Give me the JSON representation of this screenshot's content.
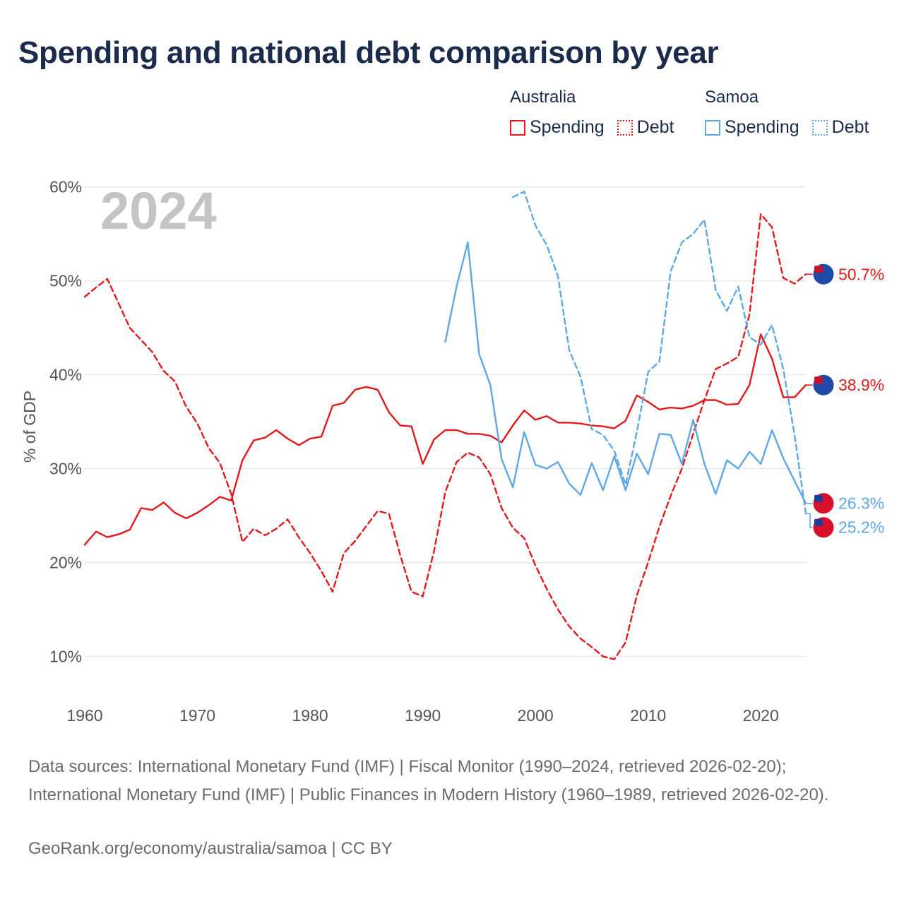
{
  "title": "Spending and national debt comparison by year",
  "legend": {
    "groups": [
      {
        "country": "Australia",
        "spending": "Spending",
        "debt": "Debt"
      },
      {
        "country": "Samoa",
        "spending": "Spending",
        "debt": "Debt"
      }
    ]
  },
  "footer": {
    "sources": "Data sources: International Monetary Fund (IMF) | Fiscal Monitor (1990–2024, retrieved 2026-02-20); International Monetary Fund (IMF) | Public Finances in Modern History (1960–1989, retrieved 2026-02-20).",
    "link": "GeoRank.org/economy/australia/samoa | CC BY"
  },
  "colors": {
    "australia": "#e31a1c",
    "samoa": "#5ea8e6",
    "grid": "#e6e6e6"
  },
  "chart_data": {
    "type": "line",
    "title": "Spending and national debt comparison by year",
    "year_label": "2024",
    "ylabel": "% of GDP",
    "xlim": [
      1960,
      2024
    ],
    "ylim": [
      5,
      62
    ],
    "xticks": [
      1960,
      1970,
      1980,
      1990,
      2000,
      2010,
      2020
    ],
    "yticks": [
      10,
      20,
      30,
      40,
      50,
      60
    ],
    "ytick_labels": [
      "10%",
      "20%",
      "30%",
      "40%",
      "50%",
      "60%"
    ],
    "grid": true,
    "series": [
      {
        "name": "Australia Spending",
        "country": "Australia",
        "style": "solid",
        "color": "#e31a1c",
        "end_label": "38.9%",
        "end_value": 38.9,
        "x": [
          1960,
          1961,
          1962,
          1963,
          1964,
          1965,
          1966,
          1967,
          1968,
          1969,
          1970,
          1971,
          1972,
          1973,
          1974,
          1975,
          1976,
          1977,
          1978,
          1979,
          1980,
          1981,
          1982,
          1983,
          1984,
          1985,
          1986,
          1987,
          1988,
          1989,
          1990,
          1991,
          1992,
          1993,
          1994,
          1995,
          1996,
          1997,
          1998,
          1999,
          2000,
          2001,
          2002,
          2003,
          2004,
          2005,
          2006,
          2007,
          2008,
          2009,
          2010,
          2011,
          2012,
          2013,
          2014,
          2015,
          2016,
          2017,
          2018,
          2019,
          2020,
          2021,
          2022,
          2023,
          2024
        ],
        "y": [
          21.9,
          23.3,
          22.7,
          23.0,
          23.5,
          25.8,
          25.6,
          26.4,
          25.3,
          24.7,
          25.3,
          26.1,
          27.0,
          26.6,
          30.9,
          33.0,
          33.3,
          34.1,
          33.2,
          32.5,
          33.2,
          33.4,
          36.7,
          37.0,
          38.4,
          38.7,
          38.4,
          36.0,
          34.6,
          34.5,
          30.5,
          33.1,
          34.1,
          34.1,
          33.7,
          33.7,
          33.5,
          32.8,
          34.6,
          36.2,
          35.2,
          35.6,
          34.9,
          34.9,
          34.8,
          34.6,
          34.5,
          34.3,
          35.1,
          37.8,
          37.1,
          36.3,
          36.5,
          36.4,
          36.7,
          37.3,
          37.3,
          36.8,
          36.9,
          38.9,
          44.3,
          41.7,
          37.6,
          37.6,
          38.9
        ]
      },
      {
        "name": "Australia Debt",
        "country": "Australia",
        "style": "dashed",
        "color": "#e31a1c",
        "end_label": "50.7%",
        "end_value": 50.7,
        "x": [
          1960,
          1961,
          1962,
          1963,
          1964,
          1965,
          1966,
          1967,
          1968,
          1969,
          1970,
          1971,
          1972,
          1973,
          1974,
          1975,
          1976,
          1977,
          1978,
          1979,
          1980,
          1981,
          1982,
          1983,
          1984,
          1985,
          1986,
          1987,
          1988,
          1989,
          1990,
          1991,
          1992,
          1993,
          1994,
          1995,
          1996,
          1997,
          1998,
          1999,
          2000,
          2001,
          2002,
          2003,
          2004,
          2005,
          2006,
          2007,
          2008,
          2009,
          2010,
          2011,
          2012,
          2013,
          2014,
          2015,
          2016,
          2017,
          2018,
          2019,
          2020,
          2021,
          2022,
          2023,
          2024
        ],
        "y": [
          48.3,
          49.3,
          50.2,
          47.6,
          45.0,
          43.7,
          42.4,
          40.4,
          39.3,
          36.6,
          34.8,
          32.2,
          30.6,
          27.3,
          22.2,
          23.6,
          22.9,
          23.6,
          24.6,
          22.7,
          21.0,
          19.1,
          16.9,
          21.0,
          22.3,
          23.9,
          25.5,
          25.2,
          20.8,
          16.9,
          16.4,
          21.2,
          27.5,
          30.7,
          31.7,
          31.2,
          29.4,
          25.8,
          23.7,
          22.6,
          19.7,
          17.2,
          15.0,
          13.2,
          11.9,
          11.0,
          10.0,
          9.7,
          11.5,
          16.5,
          20.0,
          23.8,
          27.1,
          30.0,
          33.7,
          37.3,
          40.6,
          41.2,
          41.9,
          46.4,
          57.1,
          55.7,
          50.3,
          49.7,
          50.7
        ]
      },
      {
        "name": "Samoa Spending",
        "country": "Samoa",
        "style": "solid",
        "color": "#5ea8e6",
        "end_label": "26.3%",
        "end_value": 26.3,
        "x": [
          1992,
          1993,
          1994,
          1995,
          1996,
          1997,
          1998,
          1999,
          2000,
          2001,
          2002,
          2003,
          2004,
          2005,
          2006,
          2007,
          2008,
          2009,
          2010,
          2011,
          2012,
          2013,
          2014,
          2015,
          2016,
          2017,
          2018,
          2019,
          2020,
          2021,
          2022,
          2023,
          2024
        ],
        "y": [
          43.5,
          49.4,
          54.1,
          42.2,
          38.9,
          31.0,
          28.0,
          33.9,
          30.4,
          30.0,
          30.7,
          28.4,
          27.2,
          30.6,
          27.7,
          31.3,
          27.7,
          31.6,
          29.4,
          33.7,
          33.6,
          30.5,
          35.2,
          30.5,
          27.3,
          30.9,
          30.0,
          31.8,
          30.5,
          34.1,
          31.1,
          28.7,
          26.3
        ]
      },
      {
        "name": "Samoa Debt",
        "country": "Samoa",
        "style": "dashed",
        "color": "#5ea8e6",
        "end_label": "25.2%",
        "end_value": 25.2,
        "x": [
          1998,
          1999,
          2000,
          2001,
          2002,
          2003,
          2004,
          2005,
          2006,
          2007,
          2008,
          2009,
          2010,
          2011,
          2012,
          2013,
          2014,
          2015,
          2016,
          2017,
          2018,
          2019,
          2020,
          2021,
          2022,
          2023,
          2024
        ],
        "y": [
          58.9,
          59.5,
          55.9,
          53.8,
          50.5,
          42.6,
          39.8,
          34.2,
          33.6,
          31.9,
          28.3,
          33.9,
          40.3,
          41.4,
          51.0,
          54.1,
          55.0,
          56.5,
          49.0,
          46.8,
          49.4,
          44.0,
          43.2,
          45.3,
          40.6,
          33.6,
          25.2
        ]
      }
    ]
  }
}
